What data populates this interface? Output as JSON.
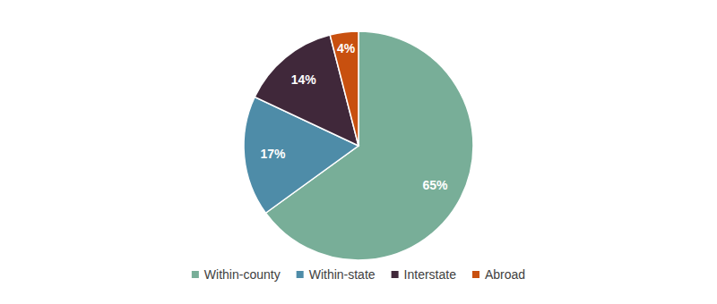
{
  "chart_data": {
    "type": "pie",
    "categories": [
      "Within-county",
      "Within-state",
      "Interstate",
      "Abroad"
    ],
    "values": [
      65,
      17,
      14,
      4
    ],
    "value_labels": [
      "65%",
      "17%",
      "14%",
      "4%"
    ],
    "colors": [
      "#78ae98",
      "#4e8ca8",
      "#40283a",
      "#c8500f"
    ],
    "data_labels": true,
    "legend": "bottom"
  }
}
